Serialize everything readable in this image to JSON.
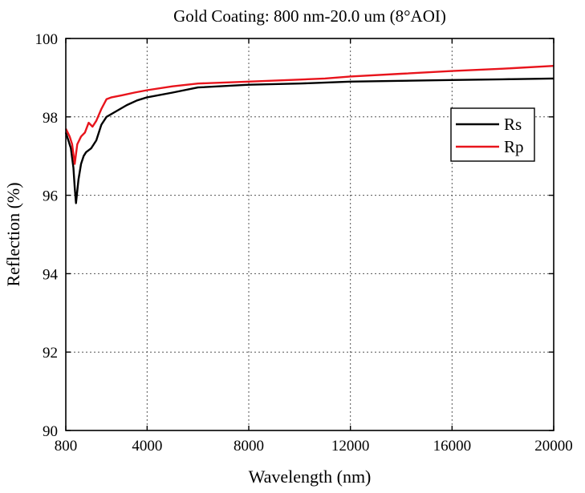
{
  "chart_data": {
    "type": "line",
    "title": "Gold Coating: 800 nm-20.0 um (8°AOI)",
    "xlabel": "Wavelength (nm)",
    "ylabel": "Reflection (%)",
    "xlim": [
      800,
      20000
    ],
    "ylim": [
      90,
      100
    ],
    "xticks": [
      800,
      4000,
      8000,
      12000,
      16000,
      20000
    ],
    "yticks": [
      90,
      92,
      94,
      96,
      98,
      100
    ],
    "grid": true,
    "legend_position": "right",
    "series": [
      {
        "name": "Rs",
        "color": "#000000",
        "points": [
          [
            800,
            97.6
          ],
          [
            900,
            97.4
          ],
          [
            1000,
            97.2
          ],
          [
            1100,
            96.7
          ],
          [
            1150,
            96.2
          ],
          [
            1200,
            95.8
          ],
          [
            1300,
            96.4
          ],
          [
            1400,
            96.8
          ],
          [
            1500,
            97.0
          ],
          [
            1600,
            97.1
          ],
          [
            1800,
            97.2
          ],
          [
            2000,
            97.4
          ],
          [
            2200,
            97.8
          ],
          [
            2400,
            98.0
          ],
          [
            2800,
            98.15
          ],
          [
            3200,
            98.3
          ],
          [
            3600,
            98.42
          ],
          [
            4000,
            98.5
          ],
          [
            5000,
            98.62
          ],
          [
            6000,
            98.75
          ],
          [
            8000,
            98.82
          ],
          [
            10000,
            98.85
          ],
          [
            12000,
            98.9
          ],
          [
            14000,
            98.92
          ],
          [
            16000,
            98.94
          ],
          [
            18000,
            98.96
          ],
          [
            20000,
            98.98
          ]
        ]
      },
      {
        "name": "Rp",
        "color": "#e8141c",
        "points": [
          [
            800,
            97.7
          ],
          [
            950,
            97.5
          ],
          [
            1050,
            97.3
          ],
          [
            1150,
            96.8
          ],
          [
            1250,
            97.3
          ],
          [
            1400,
            97.5
          ],
          [
            1550,
            97.6
          ],
          [
            1700,
            97.85
          ],
          [
            1850,
            97.75
          ],
          [
            2000,
            97.9
          ],
          [
            2200,
            98.2
          ],
          [
            2400,
            98.45
          ],
          [
            2600,
            98.5
          ],
          [
            3000,
            98.55
          ],
          [
            3500,
            98.62
          ],
          [
            4000,
            98.68
          ],
          [
            5000,
            98.78
          ],
          [
            6000,
            98.85
          ],
          [
            8000,
            98.9
          ],
          [
            10000,
            98.95
          ],
          [
            11000,
            98.98
          ],
          [
            12000,
            99.03
          ],
          [
            14000,
            99.1
          ],
          [
            16000,
            99.17
          ],
          [
            18000,
            99.23
          ],
          [
            20000,
            99.3
          ]
        ]
      }
    ]
  }
}
